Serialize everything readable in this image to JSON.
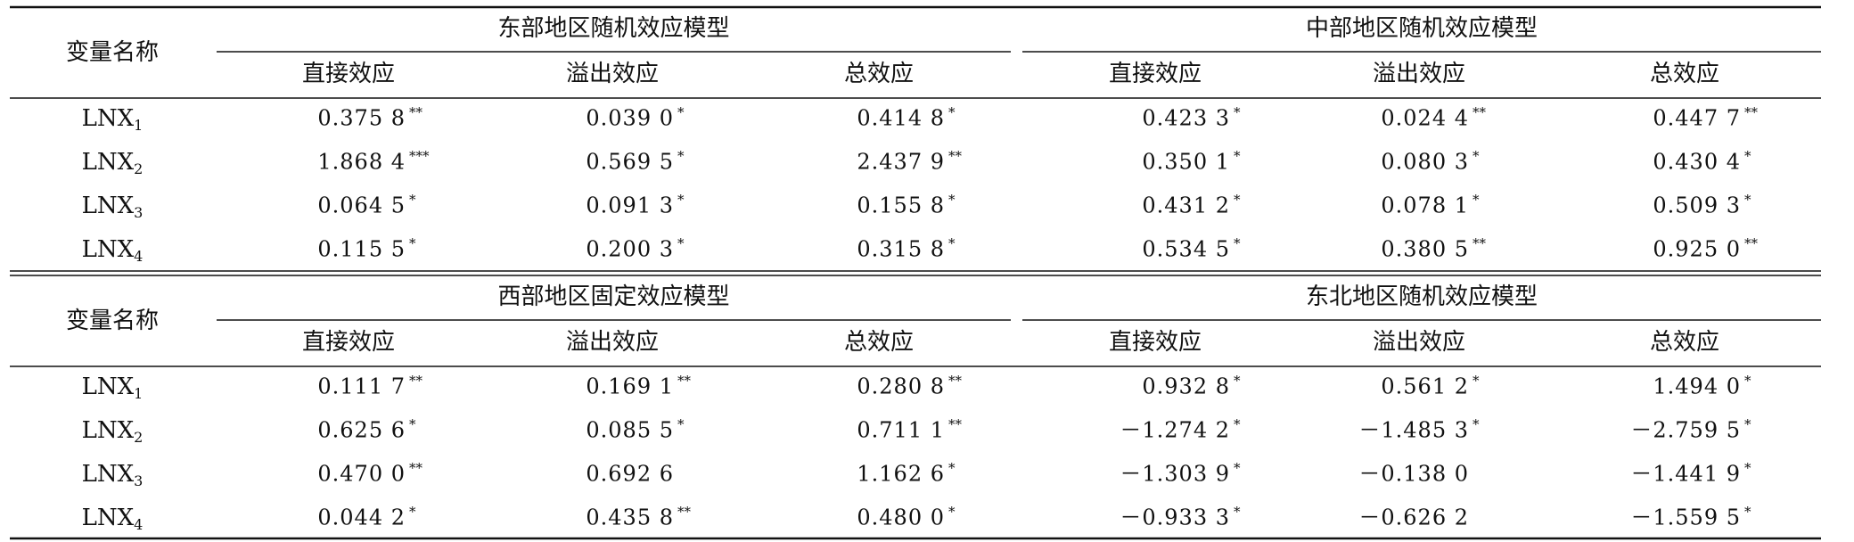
{
  "panels": [
    {
      "row_header": "变量名称",
      "groups": [
        {
          "title": "东部地区随机效应模型",
          "columns": [
            "直接效应",
            "溢出效应",
            "总效应"
          ]
        },
        {
          "title": "中部地区随机效应模型",
          "columns": [
            "直接效应",
            "溢出效应",
            "总效应"
          ]
        }
      ],
      "rows": [
        {
          "label": "LNX",
          "sub": "1",
          "cells": [
            {
              "value": "0.375 8",
              "sig": "**"
            },
            {
              "value": "0.039 0",
              "sig": "*"
            },
            {
              "value": "0.414 8",
              "sig": "*"
            },
            {
              "value": "0.423 3",
              "sig": "*"
            },
            {
              "value": "0.024 4",
              "sig": "**"
            },
            {
              "value": "0.447 7",
              "sig": "**"
            }
          ]
        },
        {
          "label": "LNX",
          "sub": "2",
          "cells": [
            {
              "value": "1.868 4",
              "sig": "***"
            },
            {
              "value": "0.569 5",
              "sig": "*"
            },
            {
              "value": "2.437 9",
              "sig": "**"
            },
            {
              "value": "0.350 1",
              "sig": "*"
            },
            {
              "value": "0.080 3",
              "sig": "*"
            },
            {
              "value": "0.430 4",
              "sig": "*"
            }
          ]
        },
        {
          "label": "LNX",
          "sub": "3",
          "cells": [
            {
              "value": "0.064 5",
              "sig": "*"
            },
            {
              "value": "0.091 3",
              "sig": "*"
            },
            {
              "value": "0.155 8",
              "sig": "*"
            },
            {
              "value": "0.431 2",
              "sig": "*"
            },
            {
              "value": "0.078 1",
              "sig": "*"
            },
            {
              "value": "0.509 3",
              "sig": "*"
            }
          ]
        },
        {
          "label": "LNX",
          "sub": "4",
          "cells": [
            {
              "value": "0.115 5",
              "sig": "*"
            },
            {
              "value": "0.200 3",
              "sig": "*"
            },
            {
              "value": "0.315 8",
              "sig": "*"
            },
            {
              "value": "0.534 5",
              "sig": "*"
            },
            {
              "value": "0.380 5",
              "sig": "**"
            },
            {
              "value": "0.925 0",
              "sig": "**"
            }
          ]
        }
      ]
    },
    {
      "row_header": "变量名称",
      "groups": [
        {
          "title": "西部地区固定效应模型",
          "columns": [
            "直接效应",
            "溢出效应",
            "总效应"
          ]
        },
        {
          "title": "东北地区随机效应模型",
          "columns": [
            "直接效应",
            "溢出效应",
            "总效应"
          ]
        }
      ],
      "rows": [
        {
          "label": "LNX",
          "sub": "1",
          "cells": [
            {
              "value": "0.111 7",
              "sig": "**"
            },
            {
              "value": "0.169 1",
              "sig": "**"
            },
            {
              "value": "0.280 8",
              "sig": "**"
            },
            {
              "value": "0.932 8",
              "sig": "*"
            },
            {
              "value": "0.561 2",
              "sig": "*"
            },
            {
              "value": "1.494 0",
              "sig": "*"
            }
          ]
        },
        {
          "label": "LNX",
          "sub": "2",
          "cells": [
            {
              "value": "0.625 6",
              "sig": "*"
            },
            {
              "value": "0.085 5",
              "sig": "*"
            },
            {
              "value": "0.711 1",
              "sig": "**"
            },
            {
              "value": "－1.274 2",
              "sig": "*"
            },
            {
              "value": "－1.485 3",
              "sig": "*"
            },
            {
              "value": "－2.759 5",
              "sig": "*"
            }
          ]
        },
        {
          "label": "LNX",
          "sub": "3",
          "cells": [
            {
              "value": "0.470 0",
              "sig": "**"
            },
            {
              "value": "0.692 6"
            },
            {
              "value": "1.162 6",
              "sig": "*"
            },
            {
              "value": "－1.303 9",
              "sig": "*"
            },
            {
              "value": "－0.138 0"
            },
            {
              "value": "－1.441 9",
              "sig": "*"
            }
          ]
        },
        {
          "label": "LNX",
          "sub": "4",
          "cells": [
            {
              "value": "0.044 2",
              "sig": "*"
            },
            {
              "value": "0.435 8",
              "sig": "**"
            },
            {
              "value": "0.480 0",
              "sig": "*"
            },
            {
              "value": "－0.933 3",
              "sig": "*"
            },
            {
              "value": "－0.626 2"
            },
            {
              "value": "－1.559 5",
              "sig": "*"
            }
          ]
        }
      ]
    }
  ]
}
